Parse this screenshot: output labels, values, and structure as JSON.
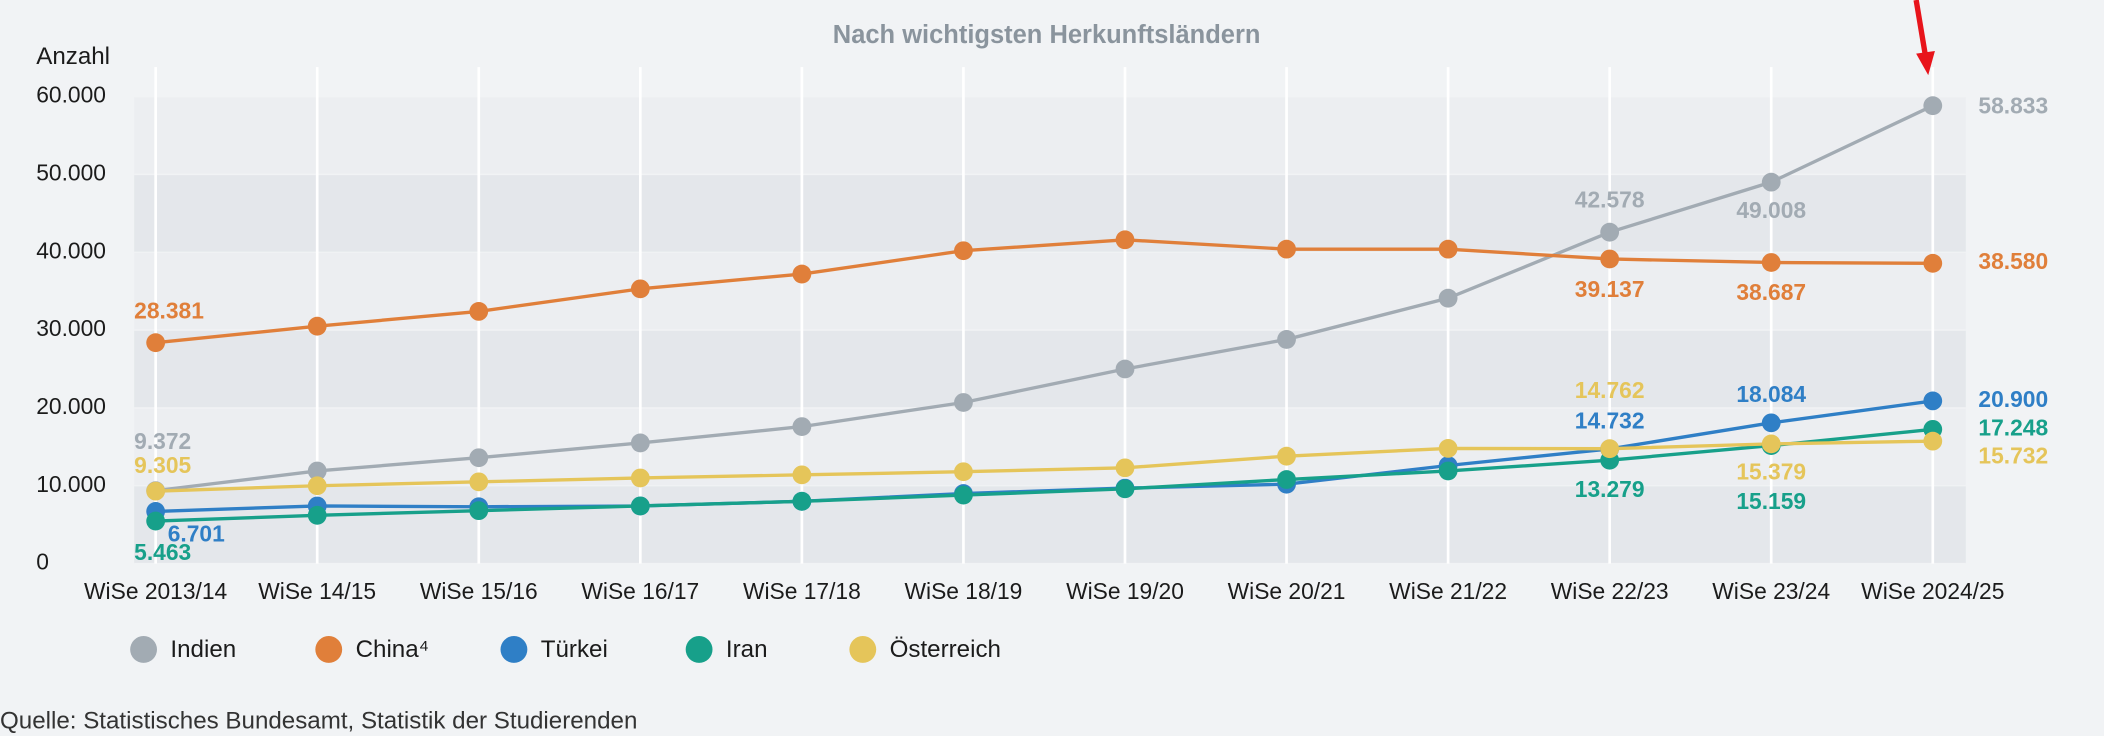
{
  "chart_data": {
    "type": "line",
    "title": "Nach wichtigsten Herkunftsländern",
    "y_label": "Anzahl",
    "source": "Quelle: Statistisches Bundesamt, Statistik der Studierenden",
    "categories": [
      "WiSe 2013/14",
      "WiSe 14/15",
      "WiSe 15/16",
      "WiSe 16/17",
      "WiSe 17/18",
      "WiSe 18/19",
      "WiSe 19/20",
      "WiSe 20/21",
      "WiSe 21/22",
      "WiSe 22/23",
      "WiSe 23/24",
      "WiSe 2024/25"
    ],
    "ylim": [
      0,
      60000
    ],
    "yticks": [
      0,
      {
        "value": 10000,
        "label": "10.000"
      },
      {
        "value": 20000,
        "label": "20.000"
      },
      {
        "value": 30000,
        "label": "30.000"
      },
      {
        "value": 40000,
        "label": "40.000"
      },
      {
        "value": 50000,
        "label": "50.000"
      },
      {
        "value": 60000,
        "label": "60.000"
      }
    ],
    "grid": true,
    "legend": "bottom-left",
    "series": [
      {
        "name": "Indien",
        "color": "#a2abb3",
        "values": [
          9372,
          11900,
          13600,
          15500,
          17600,
          20700,
          25000,
          28800,
          34100,
          42578,
          49008,
          58833
        ],
        "value_labels": [
          "9.372",
          null,
          null,
          null,
          null,
          null,
          null,
          null,
          null,
          "42.578",
          "49.008",
          "58.833"
        ]
      },
      {
        "name": "China⁴",
        "color": "#e07f3a",
        "values": [
          28381,
          30500,
          32400,
          35300,
          37200,
          40200,
          41600,
          40400,
          40400,
          39137,
          38687,
          38580
        ],
        "value_labels": [
          "28.381",
          null,
          null,
          null,
          null,
          null,
          null,
          null,
          null,
          "39.137",
          "38.687",
          "38.580"
        ]
      },
      {
        "name": "Türkei",
        "color": "#2f7fc6",
        "values": [
          6701,
          7400,
          7300,
          7400,
          8000,
          9000,
          9700,
          10200,
          12600,
          14732,
          18084,
          20900
        ],
        "value_labels": [
          "6.701",
          null,
          null,
          null,
          null,
          null,
          null,
          null,
          null,
          "14.732",
          "18.084",
          "20.900"
        ]
      },
      {
        "name": "Iran",
        "color": "#17a08a",
        "values": [
          5463,
          6200,
          6800,
          7400,
          8000,
          8800,
          9600,
          10800,
          11900,
          13279,
          15159,
          17248
        ],
        "value_labels": [
          "5.463",
          null,
          null,
          null,
          null,
          null,
          null,
          null,
          null,
          "13.279",
          "15.159",
          "17.248"
        ]
      },
      {
        "name": "Österreich",
        "color": "#e5c55a",
        "values": [
          9305,
          10000,
          10500,
          11000,
          11400,
          11800,
          12300,
          13800,
          14800,
          14762,
          15379,
          15732
        ],
        "value_labels": [
          "9.305",
          null,
          null,
          null,
          null,
          null,
          null,
          null,
          null,
          "14.762",
          "15.379",
          "15.732"
        ]
      }
    ]
  }
}
